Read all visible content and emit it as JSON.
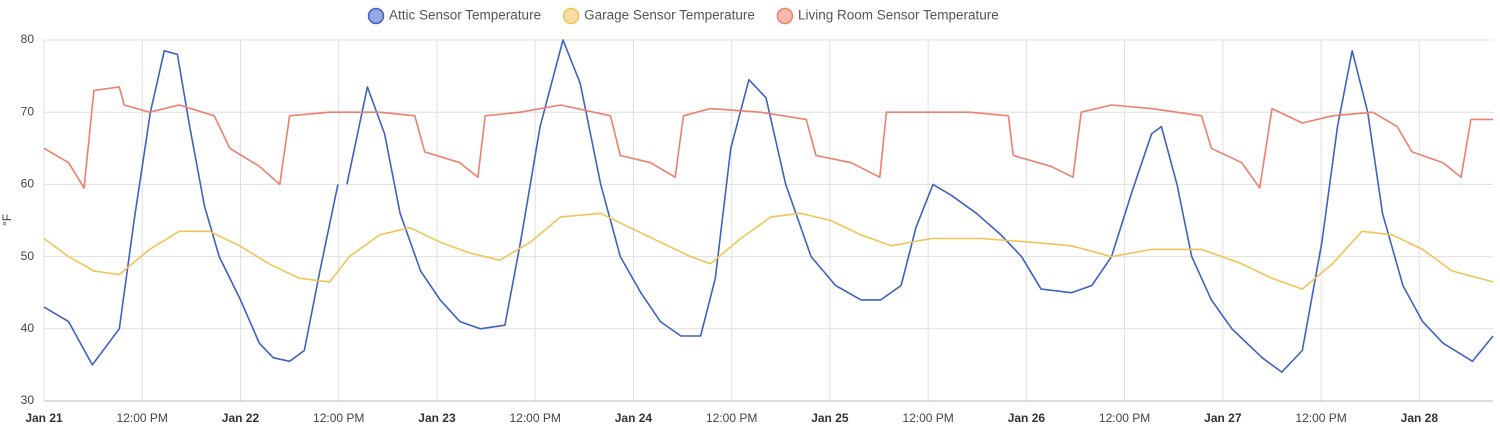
{
  "chart_data": {
    "type": "line",
    "y_label": "°F",
    "xlim": [
      0,
      177
    ],
    "ylim": [
      30,
      80
    ],
    "grid": true,
    "legend": "top",
    "yticks": [
      30,
      40,
      50,
      60,
      70,
      80
    ],
    "xticks": [
      {
        "value": 0,
        "label": "Jan 21"
      },
      {
        "value": 12,
        "label": "12:00 PM"
      },
      {
        "value": 24,
        "label": "Jan 22"
      },
      {
        "value": 36,
        "label": "12:00 PM"
      },
      {
        "value": 48,
        "label": "Jan 23"
      },
      {
        "value": 60,
        "label": "12:00 PM"
      },
      {
        "value": 72,
        "label": "Jan 24"
      },
      {
        "value": 84,
        "label": "12:00 PM"
      },
      {
        "value": 96,
        "label": "Jan 25"
      },
      {
        "value": 108,
        "label": "12:00 PM"
      },
      {
        "value": 120,
        "label": "Jan 26"
      },
      {
        "value": 132,
        "label": "12:00 PM"
      },
      {
        "value": 144,
        "label": "Jan 27"
      },
      {
        "value": 156,
        "label": "12:00 PM"
      },
      {
        "value": 168,
        "label": "Jan 28"
      }
    ],
    "series": [
      {
        "name": "Attic Sensor Temperature",
        "color": "#3e62c2",
        "x": [
          0,
          3,
          5.9,
          9.2,
          11,
          13,
          14.7,
          16.3,
          17.8,
          19.6,
          21.4,
          24,
          26.3,
          28,
          30,
          31.8,
          33.7,
          35.9,
          36.5,
          37,
          39.5,
          41.6,
          43.5,
          46,
          48.4,
          50.8,
          53.3,
          56.3,
          58.2,
          60.6,
          63.4,
          65.5,
          68,
          70.4,
          72.9,
          75.3,
          77.8,
          80.2,
          82,
          83.9,
          86.1,
          88.2,
          90.6,
          93.7,
          96.7,
          99.8,
          102.2,
          104.7,
          106.5,
          108.6,
          110.8,
          113.9,
          116.9,
          119.4,
          121.8,
          125.5,
          128,
          130.4,
          132.9,
          135.3,
          136.5,
          138.4,
          140.2,
          142.6,
          145.1,
          148.8,
          151.2,
          153.7,
          156.1,
          158,
          159.8,
          161.7,
          163.5,
          166,
          168.4,
          170.9,
          174.5,
          177
        ],
        "values": [
          43,
          41,
          35,
          40,
          55,
          70,
          78.5,
          78,
          68,
          57,
          50,
          44,
          38,
          36,
          35.5,
          37,
          48,
          60,
          null,
          60,
          73.5,
          67,
          56,
          48,
          44,
          41,
          40,
          40.5,
          52,
          68,
          80,
          74,
          60,
          50,
          45,
          41,
          39,
          39,
          47,
          65,
          74.5,
          72,
          60,
          50,
          46,
          44,
          44,
          46,
          54,
          60,
          58.5,
          56,
          53,
          50,
          45.5,
          45,
          46,
          50,
          59,
          67,
          68,
          60,
          50,
          44,
          40,
          36,
          34,
          37,
          52,
          68,
          78.5,
          70,
          56,
          46,
          41,
          38,
          35.5,
          39
        ]
      },
      {
        "name": "Garage Sensor Temperature",
        "color": "#f0c457",
        "x": [
          0,
          3,
          6.1,
          9.2,
          12.9,
          16.5,
          20.2,
          23.9,
          27.5,
          31.2,
          34.9,
          37.3,
          41,
          44.7,
          48.4,
          52,
          55.7,
          59.4,
          63.1,
          68,
          71.6,
          75.3,
          79,
          81.4,
          85.1,
          88.8,
          92.4,
          96.1,
          99.8,
          103.5,
          108.4,
          114.5,
          120.6,
          125.5,
          130.4,
          135.3,
          141.4,
          146.3,
          150,
          153.7,
          157.4,
          161,
          164.7,
          168.4,
          172,
          177
        ],
        "values": [
          52.5,
          50,
          48,
          47.5,
          51,
          53.5,
          53.5,
          51.5,
          49,
          47,
          46.5,
          50,
          53,
          54,
          52,
          50.5,
          49.5,
          52,
          55.5,
          56,
          54,
          52,
          50,
          49,
          52.5,
          55.5,
          56,
          55,
          53,
          51.5,
          52.5,
          52.5,
          52,
          51.5,
          50,
          51,
          51,
          49,
          47,
          45.5,
          49,
          53.5,
          53,
          51,
          48,
          46.5
        ]
      },
      {
        "name": "Living Room Sensor Temperature",
        "color": "#ee7f6d",
        "x": [
          0,
          3,
          4.9,
          6.1,
          9.2,
          9.8,
          12.9,
          16.5,
          20.8,
          22.7,
          26.3,
          28.8,
          30,
          34.9,
          41,
          45.3,
          46.5,
          50.8,
          53,
          53.9,
          58.2,
          63.1,
          69.2,
          70.4,
          74.1,
          77.1,
          78.1,
          81.4,
          87.5,
          93.1,
          94.3,
          98.6,
          102.1,
          102.9,
          107.1,
          113.1,
          117.8,
          118.4,
          123,
          125.7,
          126.7,
          130.4,
          135.3,
          141.4,
          142.6,
          146.3,
          148.5,
          150,
          153.7,
          157.4,
          162.3,
          165.3,
          167.1,
          170.9,
          173.1,
          174.3,
          177
        ],
        "values": [
          65,
          63,
          59.5,
          73,
          73.5,
          71,
          70,
          71,
          69.5,
          65,
          62.5,
          60,
          69.5,
          70,
          70,
          69.5,
          64.5,
          63,
          61,
          69.5,
          70,
          71,
          69.5,
          64,
          63,
          61,
          69.5,
          70.5,
          70,
          69,
          64,
          63,
          61,
          70,
          70,
          70,
          69.5,
          64,
          62.5,
          61,
          70,
          71,
          70.5,
          69.5,
          65,
          63,
          59.5,
          70.5,
          68.5,
          69.5,
          70,
          68,
          64.5,
          63,
          61,
          69,
          69
        ]
      }
    ]
  }
}
